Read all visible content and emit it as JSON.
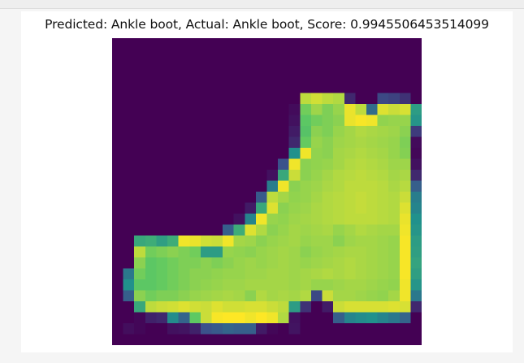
{
  "output": {
    "title": "Predicted: Ankle boot, Actual: Ankle boot, Score: 0.9945506453514099"
  },
  "colors": {
    "page_background": "#f5f5f5",
    "card_background": "#ffffff",
    "viridis": [
      "#440154",
      "#3b528b",
      "#21918c",
      "#5ec962",
      "#fde725"
    ]
  },
  "image": {
    "rows": 28,
    "cols": 28,
    "colormap": "viridis",
    "pixels": [
      [
        0,
        0,
        0,
        0,
        0,
        0,
        0,
        0,
        0,
        0,
        0,
        0,
        0,
        0,
        0,
        0,
        0,
        0,
        0,
        0,
        0,
        0,
        0,
        0,
        0,
        0,
        0,
        0
      ],
      [
        0,
        0,
        0,
        0,
        0,
        0,
        0,
        0,
        0,
        0,
        0,
        0,
        0,
        0,
        0,
        0,
        0,
        0,
        0,
        0,
        0,
        0,
        0,
        0,
        0,
        0,
        0,
        0
      ],
      [
        0,
        0,
        0,
        0,
        0,
        0,
        0,
        0,
        0,
        0,
        0,
        0,
        0,
        0,
        0,
        0,
        0,
        0,
        0,
        0,
        0,
        0,
        0,
        0,
        0,
        0,
        0,
        0
      ],
      [
        0,
        0,
        0,
        0,
        0,
        0,
        0,
        0,
        0,
        0,
        0,
        0,
        0,
        0,
        0,
        0,
        0,
        0,
        0,
        0,
        0,
        0,
        0,
        0,
        0,
        0,
        0,
        0
      ],
      [
        0,
        0,
        0,
        0,
        0,
        0,
        0,
        0,
        0,
        0,
        0,
        0,
        0,
        0,
        0,
        0,
        0,
        0,
        0,
        0,
        0,
        0,
        0,
        0,
        0,
        0,
        0,
        0
      ],
      [
        0,
        0,
        0,
        0,
        0,
        0,
        0,
        0,
        0,
        0,
        0,
        0,
        0,
        0,
        0,
        0,
        0,
        0.9,
        0.93,
        0.9,
        0.88,
        0.12,
        0,
        0,
        0.22,
        0.2,
        0.15,
        0
      ],
      [
        0,
        0,
        0,
        0,
        0,
        0,
        0,
        0,
        0,
        0,
        0,
        0,
        0,
        0,
        0,
        0,
        0.03,
        0.78,
        0.85,
        0.8,
        0.84,
        0.97,
        0.9,
        0.35,
        0.95,
        0.92,
        0.94,
        0.55
      ],
      [
        0,
        0,
        0,
        0,
        0,
        0,
        0,
        0,
        0,
        0,
        0,
        0,
        0,
        0,
        0,
        0,
        0.05,
        0.74,
        0.78,
        0.8,
        0.82,
        0.97,
        0.99,
        0.98,
        0.83,
        0.84,
        0.84,
        0.52
      ],
      [
        0,
        0,
        0,
        0,
        0,
        0,
        0,
        0,
        0,
        0,
        0,
        0,
        0,
        0,
        0,
        0,
        0.08,
        0.72,
        0.82,
        0.8,
        0.84,
        0.86,
        0.88,
        0.87,
        0.86,
        0.85,
        0.82,
        0.18
      ],
      [
        0,
        0,
        0,
        0,
        0,
        0,
        0,
        0,
        0,
        0,
        0,
        0,
        0,
        0,
        0,
        0,
        0.12,
        0.76,
        0.84,
        0.82,
        0.85,
        0.86,
        0.87,
        0.86,
        0.85,
        0.84,
        0.8,
        0.03
      ],
      [
        0,
        0,
        0,
        0,
        0,
        0,
        0,
        0,
        0,
        0,
        0,
        0,
        0,
        0,
        0,
        0,
        0.5,
        0.98,
        0.83,
        0.82,
        0.86,
        0.87,
        0.88,
        0.87,
        0.86,
        0.84,
        0.81,
        0.02
      ],
      [
        0,
        0,
        0,
        0,
        0,
        0,
        0,
        0,
        0,
        0,
        0,
        0,
        0,
        0,
        0,
        0.25,
        0.98,
        0.82,
        0.83,
        0.84,
        0.86,
        0.88,
        0.89,
        0.88,
        0.87,
        0.85,
        0.85,
        0.05
      ],
      [
        0,
        0,
        0,
        0,
        0,
        0,
        0,
        0,
        0,
        0,
        0,
        0,
        0,
        0,
        0.05,
        0.6,
        0.92,
        0.82,
        0.84,
        0.86,
        0.88,
        0.89,
        0.9,
        0.89,
        0.88,
        0.86,
        0.87,
        0.12
      ],
      [
        0,
        0,
        0,
        0,
        0,
        0,
        0,
        0,
        0,
        0,
        0,
        0,
        0,
        0,
        0.42,
        0.98,
        0.82,
        0.84,
        0.85,
        0.87,
        0.88,
        0.9,
        0.9,
        0.9,
        0.89,
        0.87,
        0.89,
        0.3
      ],
      [
        0,
        0,
        0,
        0,
        0,
        0,
        0,
        0,
        0,
        0,
        0,
        0,
        0,
        0.28,
        0.9,
        0.86,
        0.83,
        0.84,
        0.86,
        0.88,
        0.89,
        0.9,
        0.91,
        0.9,
        0.89,
        0.88,
        0.92,
        0.42
      ],
      [
        0,
        0,
        0,
        0,
        0,
        0,
        0,
        0,
        0,
        0,
        0,
        0,
        0.08,
        0.6,
        0.95,
        0.82,
        0.84,
        0.85,
        0.87,
        0.88,
        0.89,
        0.9,
        0.91,
        0.9,
        0.89,
        0.88,
        0.95,
        0.45
      ],
      [
        0,
        0,
        0,
        0,
        0,
        0,
        0,
        0,
        0,
        0,
        0,
        0.05,
        0.45,
        0.98,
        0.84,
        0.83,
        0.85,
        0.86,
        0.87,
        0.88,
        0.89,
        0.9,
        0.9,
        0.9,
        0.89,
        0.88,
        0.97,
        0.5
      ],
      [
        0,
        0,
        0,
        0,
        0,
        0,
        0,
        0,
        0,
        0,
        0.3,
        0.62,
        0.95,
        0.88,
        0.82,
        0.84,
        0.86,
        0.85,
        0.86,
        0.87,
        0.84,
        0.86,
        0.88,
        0.87,
        0.86,
        0.86,
        0.98,
        0.52
      ],
      [
        0,
        0,
        0.6,
        0.62,
        0.56,
        0.62,
        0.98,
        0.97,
        0.93,
        0.92,
        0.98,
        0.86,
        0.85,
        0.82,
        0.84,
        0.85,
        0.86,
        0.84,
        0.85,
        0.85,
        0.82,
        0.85,
        0.86,
        0.86,
        0.85,
        0.84,
        0.99,
        0.55
      ],
      [
        0,
        0,
        0.9,
        0.78,
        0.8,
        0.82,
        0.8,
        0.78,
        0.55,
        0.55,
        0.84,
        0.83,
        0.82,
        0.84,
        0.85,
        0.86,
        0.85,
        0.82,
        0.84,
        0.85,
        0.86,
        0.87,
        0.87,
        0.86,
        0.85,
        0.84,
        0.99,
        0.56
      ],
      [
        0,
        0,
        0.82,
        0.74,
        0.76,
        0.78,
        0.8,
        0.8,
        0.82,
        0.8,
        0.82,
        0.84,
        0.85,
        0.84,
        0.85,
        0.86,
        0.85,
        0.84,
        0.85,
        0.86,
        0.87,
        0.88,
        0.87,
        0.86,
        0.85,
        0.84,
        0.99,
        0.58
      ],
      [
        0,
        0.4,
        0.78,
        0.74,
        0.76,
        0.78,
        0.8,
        0.82,
        0.82,
        0.83,
        0.84,
        0.84,
        0.85,
        0.85,
        0.86,
        0.86,
        0.85,
        0.86,
        0.87,
        0.88,
        0.87,
        0.88,
        0.87,
        0.86,
        0.85,
        0.84,
        0.99,
        0.56
      ],
      [
        0,
        0.5,
        0.74,
        0.74,
        0.76,
        0.78,
        0.8,
        0.82,
        0.83,
        0.84,
        0.85,
        0.85,
        0.86,
        0.86,
        0.86,
        0.86,
        0.85,
        0.86,
        0.84,
        0.84,
        0.85,
        0.86,
        0.86,
        0.85,
        0.84,
        0.83,
        0.98,
        0.52
      ],
      [
        0,
        0.3,
        0.82,
        0.78,
        0.8,
        0.8,
        0.82,
        0.84,
        0.85,
        0.86,
        0.87,
        0.86,
        0.82,
        0.88,
        0.86,
        0.87,
        0.86,
        0.88,
        0.22,
        0.92,
        0.86,
        0.86,
        0.85,
        0.84,
        0.83,
        0.86,
        0.98,
        0.4
      ],
      [
        0,
        0,
        0.6,
        0.9,
        0.92,
        0.93,
        0.95,
        0.93,
        0.92,
        0.95,
        0.93,
        0.93,
        0.94,
        0.94,
        0.92,
        0.9,
        0.55,
        0.15,
        0,
        0.08,
        0.92,
        0.94,
        0.94,
        0.94,
        0.94,
        0.95,
        0.94,
        0.12
      ],
      [
        0,
        0,
        0.02,
        0.1,
        0.12,
        0.48,
        0.32,
        0.75,
        0.92,
        0.99,
        1,
        1,
        0.98,
        1,
        0.98,
        0.88,
        0.05,
        0,
        0,
        0,
        0.3,
        0.45,
        0.48,
        0.5,
        0.45,
        0.4,
        0.32,
        0
      ],
      [
        0,
        0.04,
        0.02,
        0,
        0,
        0.05,
        0.06,
        0.1,
        0.25,
        0.28,
        0.32,
        0.3,
        0.3,
        0.08,
        0.02,
        0,
        0.06,
        0,
        0,
        0,
        0,
        0,
        0,
        0,
        0,
        0,
        0,
        0
      ],
      [
        0,
        0,
        0,
        0,
        0,
        0,
        0,
        0,
        0,
        0,
        0,
        0,
        0,
        0,
        0,
        0,
        0,
        0,
        0,
        0,
        0,
        0,
        0,
        0,
        0,
        0,
        0,
        0
      ]
    ]
  }
}
